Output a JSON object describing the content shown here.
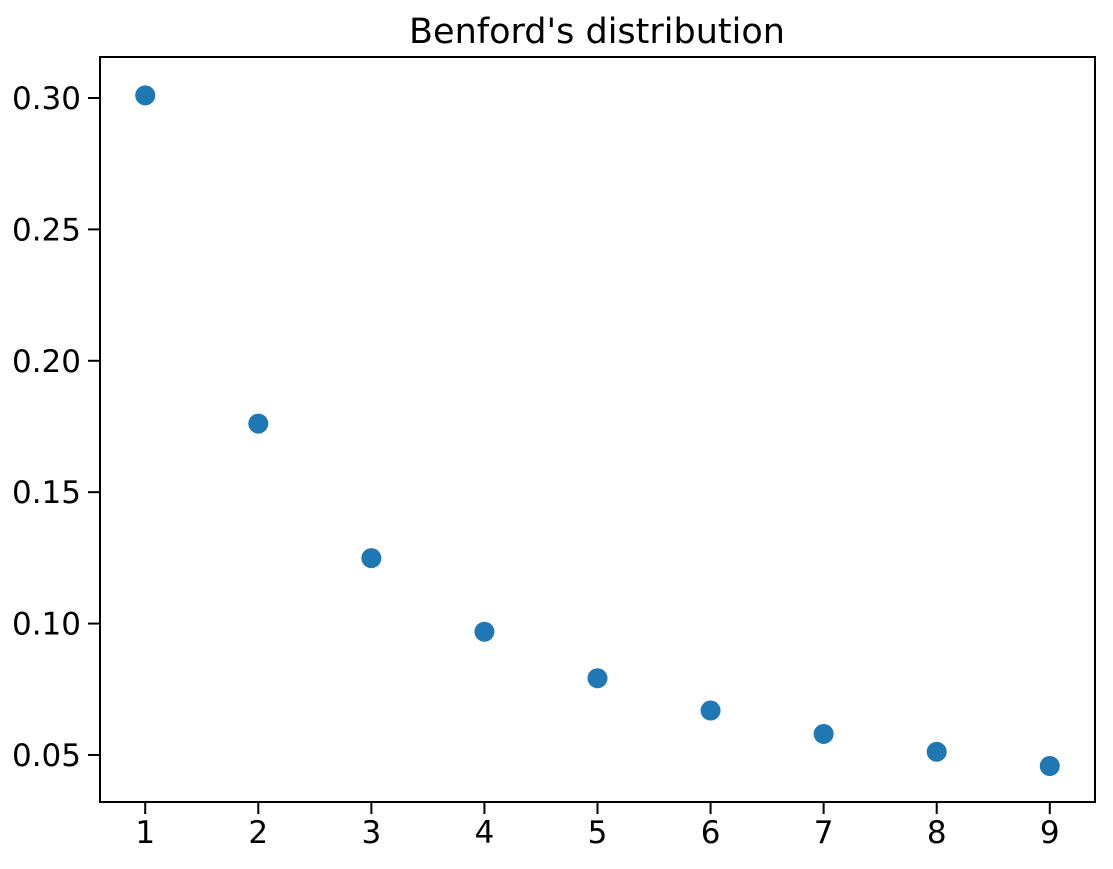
{
  "chart_data": {
    "type": "scatter",
    "title": "Benford's distribution",
    "x": [
      1,
      2,
      3,
      4,
      5,
      6,
      7,
      8,
      9
    ],
    "y": [
      0.301,
      0.1761,
      0.1249,
      0.0969,
      0.0792,
      0.0669,
      0.058,
      0.0512,
      0.0458
    ],
    "xlabel": "",
    "ylabel": "",
    "xlim": [
      0.6,
      9.4
    ],
    "ylim": [
      0.0321,
      0.3156
    ],
    "xticks": [
      1,
      2,
      3,
      4,
      5,
      6,
      7,
      8,
      9
    ],
    "xtick_labels": [
      "1",
      "2",
      "3",
      "4",
      "5",
      "6",
      "7",
      "8",
      "9"
    ],
    "yticks": [
      0.05,
      0.1,
      0.15,
      0.2,
      0.25,
      0.3
    ],
    "ytick_labels": [
      "0.05",
      "0.10",
      "0.15",
      "0.20",
      "0.25",
      "0.30"
    ],
    "grid": false,
    "legend": null,
    "marker": {
      "shape": "circle",
      "color": "#1f77b4",
      "radius_px": 10
    },
    "colors": {
      "background": "#ffffff",
      "spine": "#000000",
      "text": "#000000"
    }
  }
}
